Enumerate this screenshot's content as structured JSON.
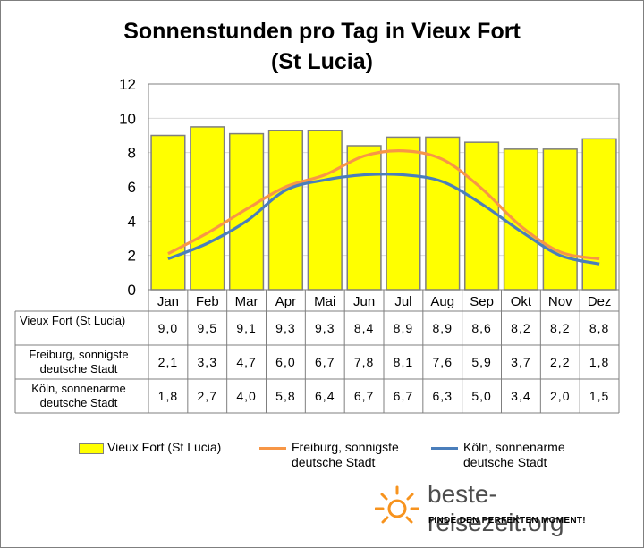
{
  "chart_data": {
    "type": "bar",
    "title_line1": "Sonnenstunden pro Tag in Vieux Fort",
    "title_line2": "(St Lucia)",
    "categories": [
      "Jan",
      "Feb",
      "Mar",
      "Apr",
      "Mai",
      "Jun",
      "Jul",
      "Aug",
      "Sep",
      "Okt",
      "Nov",
      "Dez"
    ],
    "y_ticks": [
      "0",
      "2",
      "4",
      "6",
      "8",
      "10",
      "12"
    ],
    "ylim": [
      0,
      12
    ],
    "grid": true,
    "legend_position": "bottom",
    "series": [
      {
        "name": "Vieux Fort (St Lucia)",
        "table_label": [
          "Vieux Fort (St Lucia)"
        ],
        "type": "bar",
        "color": "#ffff00",
        "values": [
          9.0,
          9.5,
          9.1,
          9.3,
          9.3,
          8.4,
          8.9,
          8.9,
          8.6,
          8.2,
          8.2,
          8.8
        ],
        "labels": [
          "9,0",
          "9,5",
          "9,1",
          "9,3",
          "9,3",
          "8,4",
          "8,9",
          "8,9",
          "8,6",
          "8,2",
          "8,2",
          "8,8"
        ]
      },
      {
        "name": "Freiburg, sonnigste deutsche Stadt",
        "table_label": [
          "Freiburg, sonnigste",
          "deutsche Stadt"
        ],
        "legend_label": [
          "Freiburg, sonnigste",
          "deutsche Stadt"
        ],
        "type": "line",
        "color": "#f79646",
        "values": [
          2.1,
          3.3,
          4.7,
          6.0,
          6.7,
          7.8,
          8.1,
          7.6,
          5.9,
          3.7,
          2.2,
          1.8
        ],
        "labels": [
          "2,1",
          "3,3",
          "4,7",
          "6,0",
          "6,7",
          "7,8",
          "8,1",
          "7,6",
          "5,9",
          "3,7",
          "2,2",
          "1,8"
        ]
      },
      {
        "name": "Köln, sonnenarme deutsche Stadt",
        "table_label": [
          "Köln, sonnenarme",
          "deutsche Stadt"
        ],
        "legend_label": [
          "Köln, sonnenarme",
          "deutsche Stadt"
        ],
        "type": "line",
        "color": "#4a7ebb",
        "values": [
          1.8,
          2.7,
          4.0,
          5.8,
          6.4,
          6.7,
          6.7,
          6.3,
          5.0,
          3.4,
          2.0,
          1.5
        ],
        "labels": [
          "1,8",
          "2,7",
          "4,0",
          "5,8",
          "6,4",
          "6,7",
          "6,7",
          "6,3",
          "5,0",
          "3,4",
          "2,0",
          "1,5"
        ]
      }
    ]
  },
  "brand": {
    "name": "beste-reisezeit.org",
    "slogan": "FINDE DEN PERFEKTEN MOMENT!",
    "icon": "sun-icon",
    "icon_color": "#f7931e"
  },
  "colors": {
    "bar_border": "#7f7f7f",
    "gridline": "#d9d9d9",
    "axis": "#7f7f7f"
  }
}
